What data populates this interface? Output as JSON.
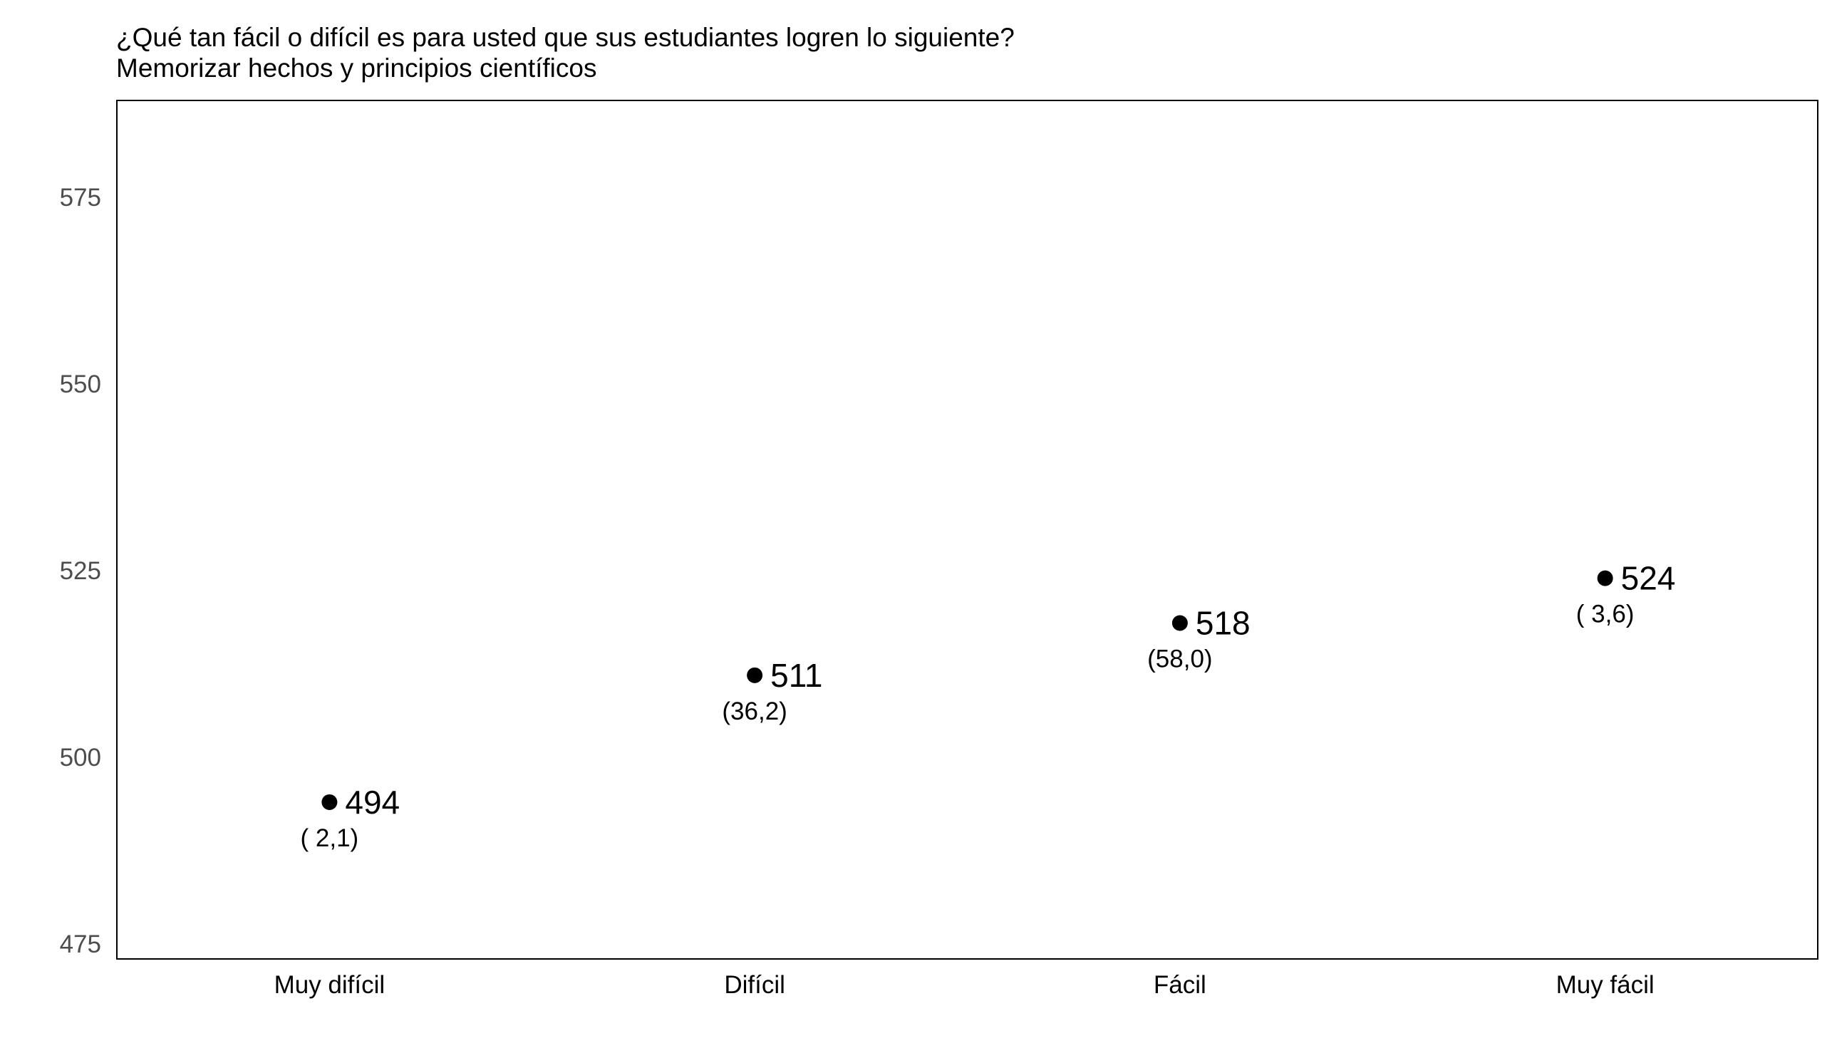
{
  "chart_data": {
    "type": "scatter",
    "title": "¿Qué tan fácil o difícil es para usted que sus estudiantes logren lo siguiente?",
    "subtitle": "Memorizar hechos y principios científicos",
    "xlabel": "",
    "ylabel": "",
    "categories": [
      "Muy difícil",
      "Difícil",
      "Fácil",
      "Muy fácil"
    ],
    "values": [
      494,
      511,
      518,
      524
    ],
    "value_labels": [
      "494",
      "511",
      "518",
      "524"
    ],
    "percent_labels": [
      "( 2,1)",
      "(36,2)",
      "(58,0)",
      "( 3,6)"
    ],
    "ylim": [
      473,
      588
    ],
    "yticks": [
      475,
      500,
      525,
      550,
      575
    ],
    "grid": false,
    "legend": "none",
    "point_color": "#000000"
  }
}
